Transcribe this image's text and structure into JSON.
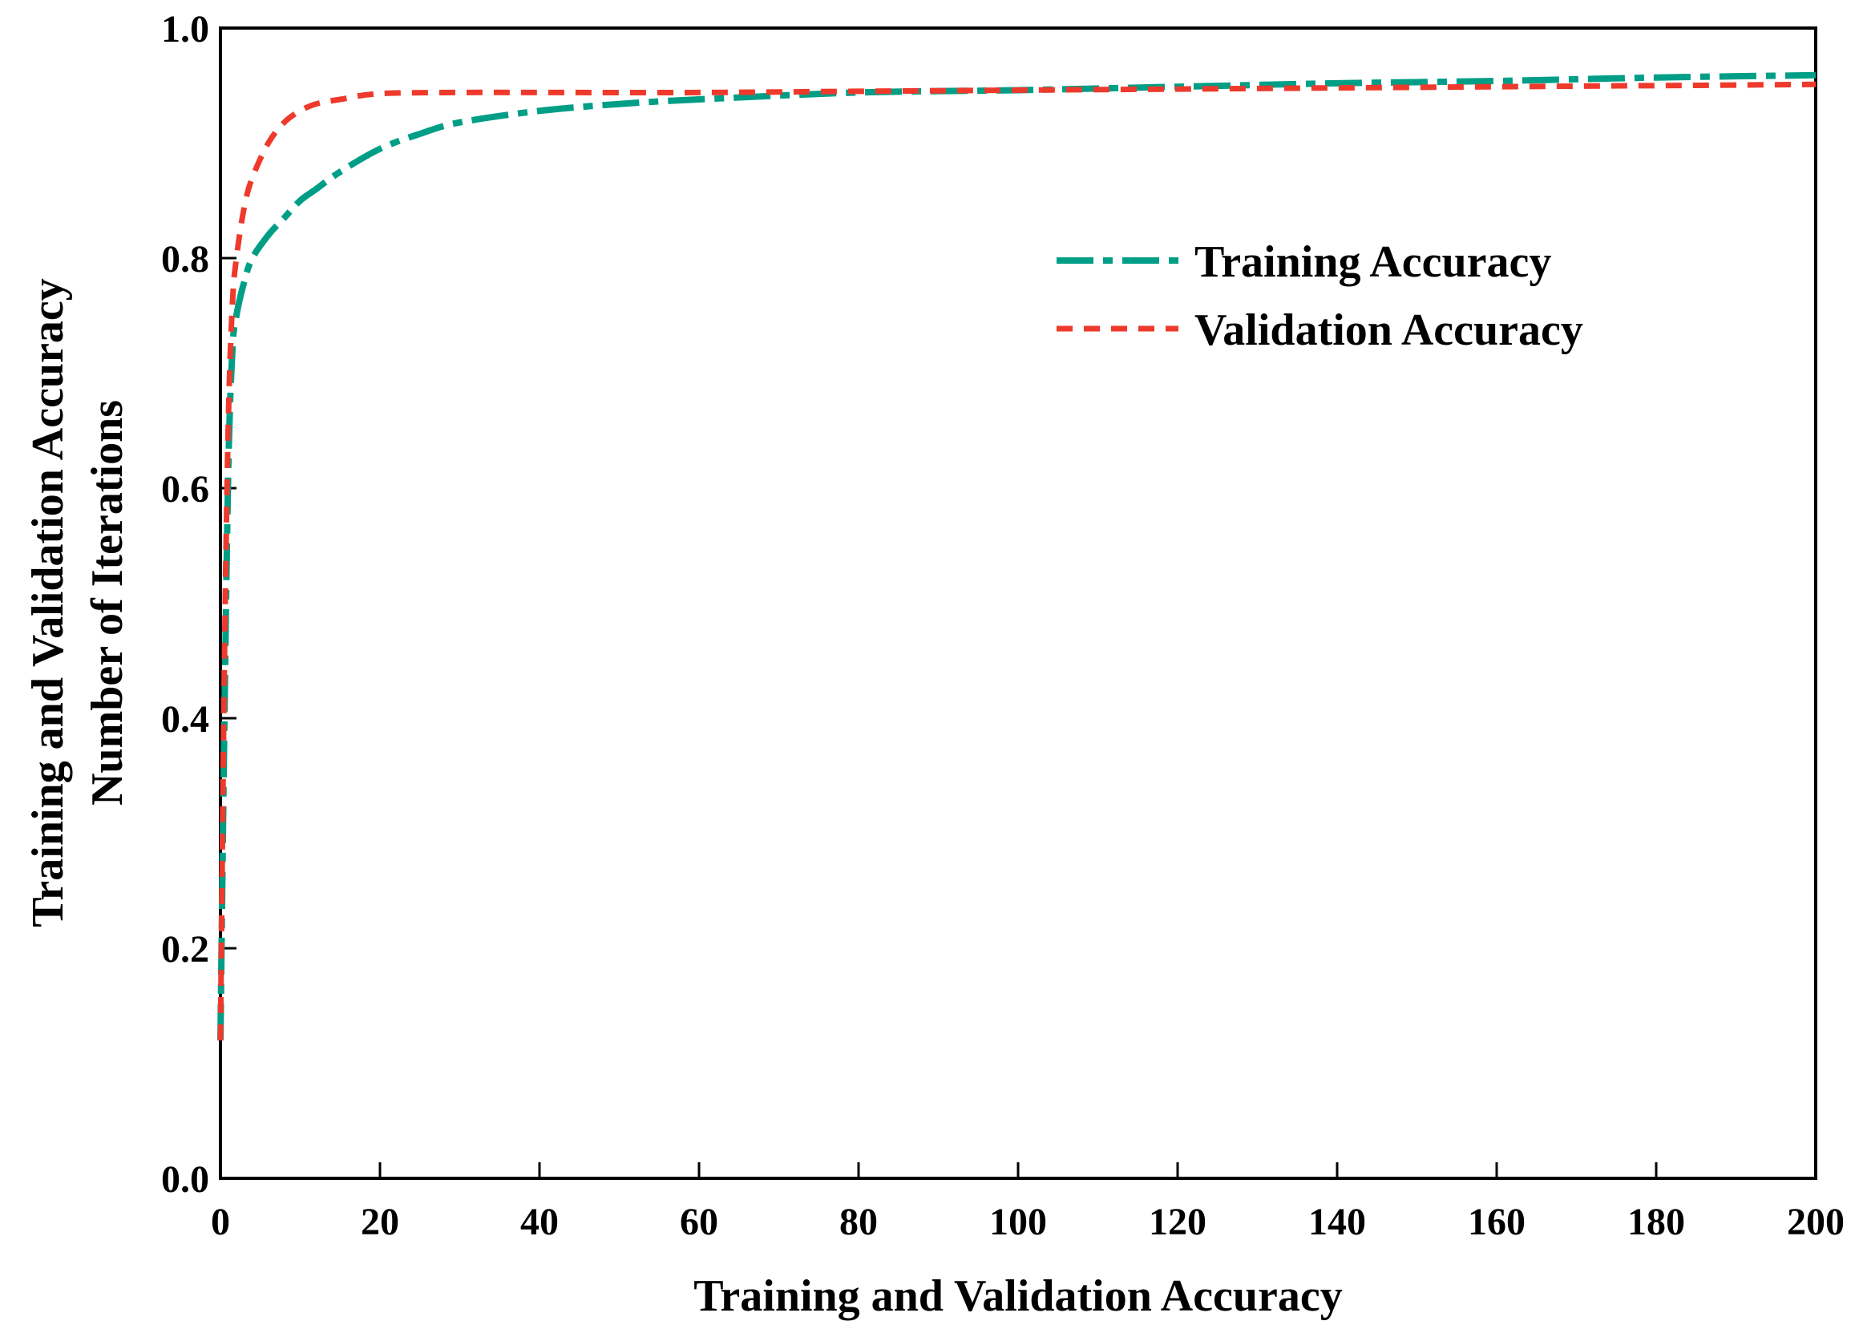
{
  "chart_data": {
    "type": "line",
    "title": "",
    "xlabel": "Training and Validation Accuracy",
    "ylabel_lines": [
      "Training and Validation Accuracy",
      "Number of Iterations"
    ],
    "xlim": [
      0,
      200
    ],
    "ylim": [
      0.0,
      1.0
    ],
    "xticks": [
      0,
      20,
      40,
      60,
      80,
      100,
      120,
      140,
      160,
      180,
      200
    ],
    "yticks": [
      0.0,
      0.2,
      0.4,
      0.6,
      0.8,
      1.0
    ],
    "xtick_labels": [
      "0",
      "20",
      "40",
      "60",
      "80",
      "100",
      "120",
      "140",
      "160",
      "180",
      "200"
    ],
    "ytick_labels": [
      "0.0",
      "0.2",
      "0.4",
      "0.6",
      "0.8",
      "1.0"
    ],
    "grid": false,
    "legend_position": "upper-right",
    "series": [
      {
        "name": "Training Accuracy",
        "color": "#009e86",
        "style": "dash-dot",
        "x": [
          0,
          0.5,
          1,
          1.5,
          2,
          3,
          4,
          6,
          8,
          10,
          12,
          15,
          20,
          25,
          30,
          40,
          50,
          60,
          80,
          100,
          120,
          140,
          160,
          180,
          200
        ],
        "y": [
          0.12,
          0.4,
          0.62,
          0.72,
          0.75,
          0.78,
          0.8,
          0.82,
          0.835,
          0.85,
          0.86,
          0.875,
          0.895,
          0.908,
          0.918,
          0.928,
          0.934,
          0.938,
          0.944,
          0.946,
          0.949,
          0.952,
          0.954,
          0.957,
          0.959
        ]
      },
      {
        "name": "Validation Accuracy",
        "color": "#ee3a2c",
        "style": "dashed",
        "x": [
          0,
          0.5,
          1,
          1.5,
          2,
          3,
          4,
          6,
          8,
          10,
          12,
          15,
          20,
          30,
          40,
          60,
          80,
          100,
          120,
          140,
          160,
          180,
          200
        ],
        "y": [
          0.12,
          0.45,
          0.66,
          0.76,
          0.8,
          0.845,
          0.87,
          0.9,
          0.918,
          0.928,
          0.934,
          0.938,
          0.943,
          0.944,
          0.944,
          0.944,
          0.945,
          0.946,
          0.947,
          0.948,
          0.949,
          0.95,
          0.951
        ]
      }
    ]
  }
}
